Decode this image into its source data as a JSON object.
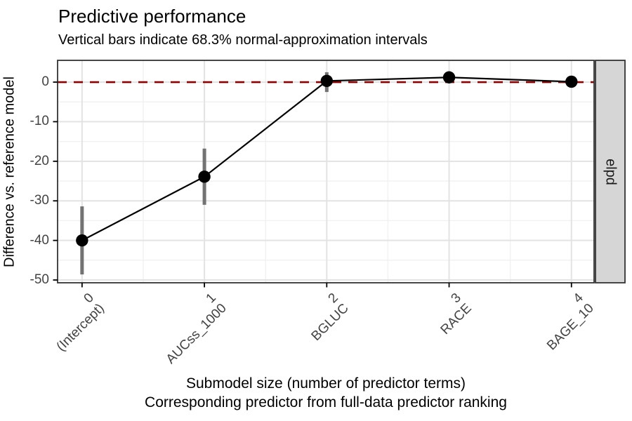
{
  "header": {
    "title": "Predictive performance",
    "subtitle": "Vertical bars indicate 68.3% normal-approximation intervals"
  },
  "facet_strip": {
    "label": "elpd"
  },
  "axes": {
    "y_title": "Difference vs. reference model",
    "x_title_line1": "Submodel size (number of predictor terms)",
    "x_title_line2": "Corresponding predictor from full-data predictor ranking"
  },
  "colors": {
    "reference_line": "#8B0000",
    "interval_bar": "#737373",
    "point_and_line": "#000000",
    "grid_major": "#e3e3e3",
    "grid_minor": "#f1f1f1",
    "panel_border": "#333333",
    "strip_background": "#d6d6d6",
    "tick_label": "#434343"
  },
  "chart_data": {
    "type": "line",
    "title": "Predictive performance",
    "subtitle": "Vertical bars indicate 68.3% normal-approximation intervals",
    "xlabel": "Submodel size (number of predictor terms) / Corresponding predictor from full-data predictor ranking",
    "ylabel": "Difference vs. reference model",
    "facet_label": "elpd",
    "x": [
      0,
      1,
      2,
      3,
      4
    ],
    "x_tick_labels": [
      {
        "size": "0",
        "predictor": "(Intercept)"
      },
      {
        "size": "1",
        "predictor": "AUCss_1000"
      },
      {
        "size": "2",
        "predictor": "BGLUC"
      },
      {
        "size": "3",
        "predictor": "RACE"
      },
      {
        "size": "4",
        "predictor": "BAGE_10"
      }
    ],
    "series": [
      {
        "name": "elpd difference vs. reference model",
        "values": [
          -40,
          -23.9,
          0.3,
          1.2,
          0.1
        ],
        "interval_lower": [
          -48.6,
          -31.0,
          -2.5,
          -0.2,
          -1.2
        ],
        "interval_upper": [
          -31.4,
          -16.8,
          2.5,
          2.6,
          1.4
        ]
      }
    ],
    "reference_line_y": 0,
    "y_ticks": [
      0,
      -10,
      -20,
      -30,
      -40,
      -50
    ],
    "y_minor_ticks": [
      -5,
      -15,
      -25,
      -35,
      -45
    ],
    "x_minor_ticks": [
      0.5,
      1.5,
      2.5,
      3.5
    ],
    "ylim": [
      5.5,
      -50.7
    ],
    "xlim": [
      -0.2,
      4.185
    ],
    "grid": true,
    "legend": false
  }
}
